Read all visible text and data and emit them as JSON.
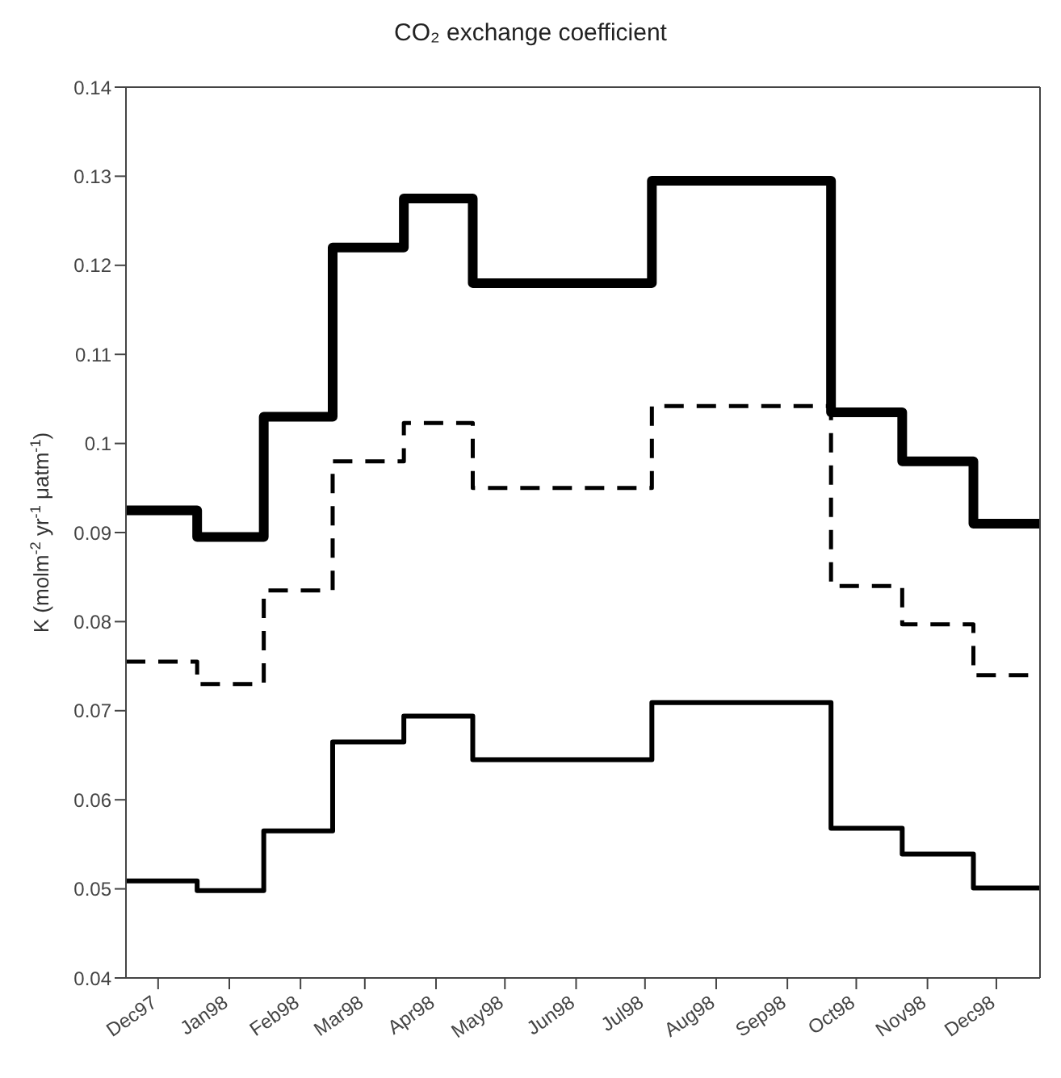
{
  "chart_data": {
    "type": "step",
    "title": "CO₂ exchange coefficient",
    "ylabel": "K (molm$^{-2}$ yr$^{-1}$ μatm$^{-1}$)",
    "xlim": [
      "1997-12-01",
      "1999-01-03"
    ],
    "xticks": [
      {
        "value": "1997-12-15",
        "label": "Dec97"
      },
      {
        "value": "1998-01-15",
        "label": "Jan98"
      },
      {
        "value": "1998-02-15",
        "label": "Feb98"
      },
      {
        "value": "1998-03-15",
        "label": "Mar98"
      },
      {
        "value": "1998-04-15",
        "label": "Apr98"
      },
      {
        "value": "1998-05-15",
        "label": "May98"
      },
      {
        "value": "1998-06-15",
        "label": "Jun98"
      },
      {
        "value": "1998-07-15",
        "label": "Jul98"
      },
      {
        "value": "1998-08-15",
        "label": "Aug98"
      },
      {
        "value": "1998-09-15",
        "label": "Sep98"
      },
      {
        "value": "1998-10-15",
        "label": "Oct98"
      },
      {
        "value": "1998-11-15",
        "label": "Nov98"
      },
      {
        "value": "1998-12-15",
        "label": "Dec98"
      }
    ],
    "ylim": [
      0.04,
      0.14
    ],
    "yticks": [
      0.04,
      0.05,
      0.06,
      0.07,
      0.08,
      0.09,
      0.1,
      0.11,
      0.12,
      0.13,
      0.14
    ],
    "grid": false,
    "legend": false,
    "marker": "none",
    "series": [
      {
        "color": "#000000",
        "line_style": "solid",
        "x": [
          "1997-12-01",
          "1998-01-01",
          "1998-01-30",
          "1998-03-01",
          "1998-04-01",
          "1998-05-01",
          "1998-07-18",
          "1998-10-04",
          "1998-11-04",
          "1998-12-05",
          "1999-01-03"
        ],
        "values": [
          0.0925,
          0.0895,
          0.103,
          0.122,
          0.1275,
          0.118,
          0.1295,
          0.1035,
          0.098,
          0.091,
          0.091
        ]
      },
      {
        "color": "#000000",
        "line_style": "dashed",
        "x": [
          "1997-12-01",
          "1998-01-01",
          "1998-01-30",
          "1998-03-01",
          "1998-04-01",
          "1998-05-01",
          "1998-07-18",
          "1998-10-04",
          "1998-11-04",
          "1998-12-05",
          "1999-01-03"
        ],
        "values": [
          0.0755,
          0.073,
          0.0835,
          0.098,
          0.1023,
          0.095,
          0.1042,
          0.084,
          0.0797,
          0.074,
          0.074
        ]
      },
      {
        "color": "#000000",
        "line_style": "solid",
        "x": [
          "1997-12-01",
          "1998-01-01",
          "1998-01-30",
          "1998-03-01",
          "1998-04-01",
          "1998-05-01",
          "1998-07-18",
          "1998-10-04",
          "1998-11-04",
          "1998-12-05",
          "1999-01-03"
        ],
        "values": [
          0.0509,
          0.0498,
          0.0565,
          0.0665,
          0.0694,
          0.0645,
          0.0709,
          0.0568,
          0.0539,
          0.0501,
          0.0501
        ]
      }
    ]
  }
}
